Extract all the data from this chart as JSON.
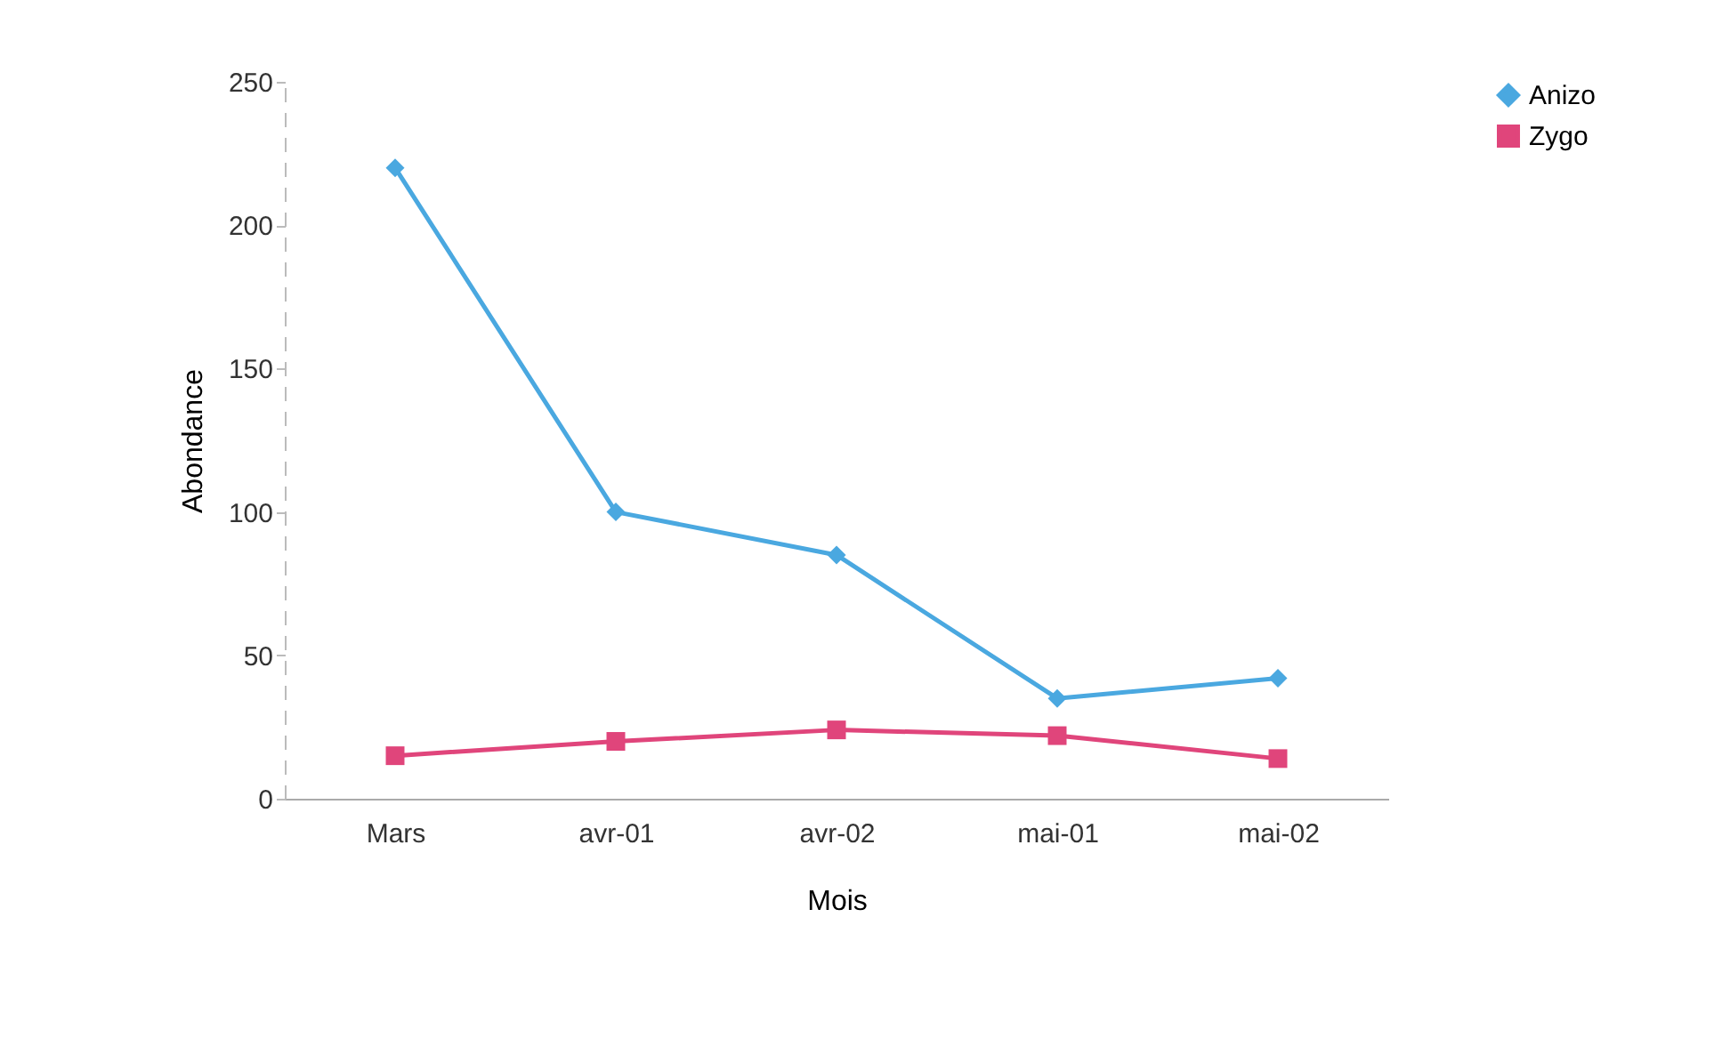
{
  "chart_data": {
    "type": "line",
    "xlabel": "Mois",
    "ylabel": "Abondance",
    "categories": [
      "Mars",
      "avr-01",
      "avr-02",
      "mai-01",
      "mai-02"
    ],
    "series": [
      {
        "name": "Anizo",
        "color": "#4aa8e0",
        "marker": "diamond",
        "values": [
          220,
          100,
          85,
          35,
          42
        ]
      },
      {
        "name": "Zygo",
        "color": "#e0457b",
        "marker": "square",
        "values": [
          15,
          20,
          24,
          22,
          14
        ]
      }
    ],
    "ylim": [
      0,
      250
    ],
    "yticks": [
      0,
      50,
      100,
      150,
      200,
      250
    ],
    "grid": false,
    "legend": "right"
  }
}
